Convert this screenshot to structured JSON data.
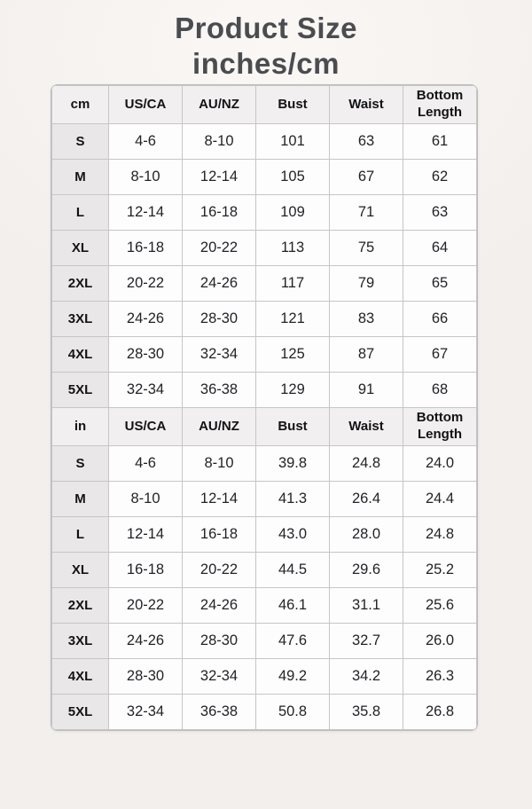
{
  "title": {
    "line1": "Product Size",
    "line2": "inches/cm"
  },
  "colors": {
    "page_background": "#f3efed",
    "title_text": "#4b4c50",
    "table_border": "#c7c5c5",
    "header_cell_background": "#f1efef",
    "size_label_background": "#e9e7e7",
    "value_cell_background": "#fdfdfd",
    "body_text": "#222327"
  },
  "chart_data": {
    "type": "table",
    "title": "Product Size inches/cm",
    "sections": [
      {
        "unit": "cm",
        "columns": [
          "cm",
          "US/CA",
          "AU/NZ",
          "Bust",
          "Waist",
          "Bottom Length"
        ],
        "rows": [
          [
            "S",
            "4-6",
            "8-10",
            "101",
            "63",
            "61"
          ],
          [
            "M",
            "8-10",
            "12-14",
            "105",
            "67",
            "62"
          ],
          [
            "L",
            "12-14",
            "16-18",
            "109",
            "71",
            "63"
          ],
          [
            "XL",
            "16-18",
            "20-22",
            "113",
            "75",
            "64"
          ],
          [
            "2XL",
            "20-22",
            "24-26",
            "117",
            "79",
            "65"
          ],
          [
            "3XL",
            "24-26",
            "28-30",
            "121",
            "83",
            "66"
          ],
          [
            "4XL",
            "28-30",
            "32-34",
            "125",
            "87",
            "67"
          ],
          [
            "5XL",
            "32-34",
            "36-38",
            "129",
            "91",
            "68"
          ]
        ]
      },
      {
        "unit": "in",
        "columns": [
          "in",
          "US/CA",
          "AU/NZ",
          "Bust",
          "Waist",
          "Bottom Length"
        ],
        "rows": [
          [
            "S",
            "4-6",
            "8-10",
            "39.8",
            "24.8",
            "24.0"
          ],
          [
            "M",
            "8-10",
            "12-14",
            "41.3",
            "26.4",
            "24.4"
          ],
          [
            "L",
            "12-14",
            "16-18",
            "43.0",
            "28.0",
            "24.8"
          ],
          [
            "XL",
            "16-18",
            "20-22",
            "44.5",
            "29.6",
            "25.2"
          ],
          [
            "2XL",
            "20-22",
            "24-26",
            "46.1",
            "31.1",
            "25.6"
          ],
          [
            "3XL",
            "24-26",
            "28-30",
            "47.6",
            "32.7",
            "26.0"
          ],
          [
            "4XL",
            "28-30",
            "32-34",
            "49.2",
            "34.2",
            "26.3"
          ],
          [
            "5XL",
            "32-34",
            "36-38",
            "50.8",
            "35.8",
            "26.8"
          ]
        ]
      }
    ]
  }
}
